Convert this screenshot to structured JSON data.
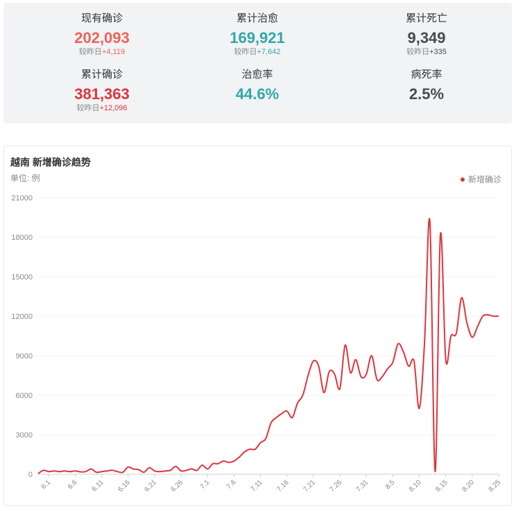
{
  "stats": {
    "current_confirmed": {
      "label": "现有确诊",
      "value": "202,093",
      "delta_prefix": "较昨日",
      "delta": "+4,119"
    },
    "total_recovered": {
      "label": "累计治愈",
      "value": "169,921",
      "delta_prefix": "较昨日",
      "delta": "+7,642"
    },
    "total_deaths": {
      "label": "累计死亡",
      "value": "9,349",
      "delta_prefix": "较昨日",
      "delta": "+335"
    },
    "total_confirmed": {
      "label": "累计确诊",
      "value": "381,363",
      "delta_prefix": "较昨日",
      "delta": "+12,096"
    },
    "recovery_rate": {
      "label": "治愈率",
      "value": "44.6%"
    },
    "fatality_rate": {
      "label": "病死率",
      "value": "2.5%"
    }
  },
  "colors": {
    "confirmed_red": "#e0333c",
    "current_salmon": "#f0625a",
    "recovered_teal": "#33a6a9",
    "deaths_dark": "#4a4a4a",
    "line": "#e0333c"
  },
  "chart_data": {
    "type": "line",
    "title": "越南 新增确诊趋势",
    "unit_label": "单位: 例",
    "ylim": [
      0,
      21000
    ],
    "y_ticks": [
      "0",
      "3000",
      "6000",
      "9000",
      "12000",
      "15000",
      "18000",
      "21000"
    ],
    "x_tick_labels": [
      "6.1",
      "6.6",
      "6.11",
      "6.16",
      "6.21",
      "6.26",
      "7.1",
      "7.6",
      "7.11",
      "7.16",
      "7.21",
      "7.26",
      "7.31",
      "8.5",
      "8.10",
      "8.15",
      "8.20",
      "8.25"
    ],
    "grid": true,
    "legend_position": "top-right",
    "series": [
      {
        "name": "新增确诊",
        "x": [
          "5.30",
          "5.31",
          "6.1",
          "6.2",
          "6.3",
          "6.4",
          "6.5",
          "6.6",
          "6.7",
          "6.8",
          "6.9",
          "6.10",
          "6.11",
          "6.12",
          "6.13",
          "6.14",
          "6.15",
          "6.16",
          "6.17",
          "6.18",
          "6.19",
          "6.20",
          "6.21",
          "6.22",
          "6.23",
          "6.24",
          "6.25",
          "6.26",
          "6.27",
          "6.28",
          "6.29",
          "6.30",
          "7.1",
          "7.2",
          "7.3",
          "7.4",
          "7.5",
          "7.6",
          "7.7",
          "7.8",
          "7.9",
          "7.10",
          "7.11",
          "7.12",
          "7.13",
          "7.14",
          "7.15",
          "7.16",
          "7.17",
          "7.18",
          "7.19",
          "7.20",
          "7.21",
          "7.22",
          "7.23",
          "7.24",
          "7.25",
          "7.26",
          "7.27",
          "7.28",
          "7.29",
          "7.30",
          "7.31",
          "8.1",
          "8.2",
          "8.3",
          "8.4",
          "8.5",
          "8.6",
          "8.7",
          "8.8",
          "8.9",
          "8.10",
          "8.11",
          "8.12",
          "8.13",
          "8.14",
          "8.15",
          "8.16",
          "8.17",
          "8.18",
          "8.19",
          "8.20",
          "8.21",
          "8.22",
          "8.23",
          "8.24",
          "8.25"
        ],
        "values": [
          50,
          300,
          200,
          250,
          200,
          250,
          200,
          250,
          180,
          200,
          400,
          150,
          200,
          250,
          300,
          200,
          150,
          550,
          400,
          350,
          150,
          500,
          250,
          200,
          250,
          300,
          600,
          250,
          300,
          400,
          300,
          700,
          400,
          800,
          800,
          1000,
          900,
          1000,
          1300,
          1700,
          1900,
          1900,
          2400,
          2700,
          3900,
          4300,
          4600,
          4800,
          4300,
          5400,
          6000,
          7500,
          8600,
          8200,
          6200,
          7800,
          7600,
          6500,
          9800,
          7700,
          8700,
          7400,
          7600,
          9000,
          7200,
          7400,
          8000,
          8500,
          9900,
          9300,
          8200,
          8600,
          5000,
          10000,
          19200,
          200,
          18200,
          8700,
          10500,
          10700,
          13400,
          11500,
          10400,
          11200,
          12000,
          12100,
          12000,
          12000
        ]
      }
    ]
  }
}
